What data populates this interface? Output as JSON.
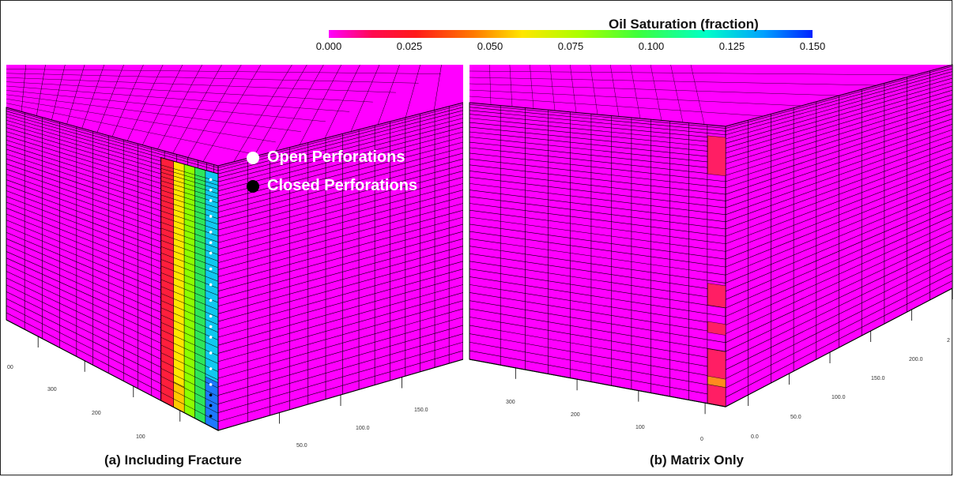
{
  "colorbar": {
    "title": "Oil Saturation (fraction)",
    "ticks": [
      "0.000",
      "0.025",
      "0.050",
      "0.075",
      "0.100",
      "0.125",
      "0.150"
    ],
    "colors": [
      "#ff00ff",
      "#ff0a3c",
      "#ff2a00",
      "#ff8c00",
      "#ffe600",
      "#b4ff00",
      "#3cff3c",
      "#00ffc8",
      "#00aaff",
      "#0028ff"
    ]
  },
  "legend": {
    "open": "Open Perforations",
    "closed": "Closed Perforations"
  },
  "panels": {
    "a": {
      "label": "(a) Including Fracture",
      "axis_left": [
        "00",
        "300",
        "200",
        "100"
      ],
      "axis_right": [
        "50.0",
        "100.0",
        "150.0"
      ]
    },
    "b": {
      "label": "(b) Matrix Only",
      "axis_left": [
        "300",
        "200",
        "100",
        "0"
      ],
      "axis_right": [
        "0.0",
        "50.0",
        "100.0",
        "150.0",
        "200.0",
        "2"
      ]
    }
  },
  "colors": {
    "matrix": "#ff00ff",
    "fracture_columns": [
      "#ff1e3c",
      "#ffe600",
      "#8cff00",
      "#2ee65a",
      "#10c8f0"
    ],
    "fracture_b": "#ff1e64"
  }
}
